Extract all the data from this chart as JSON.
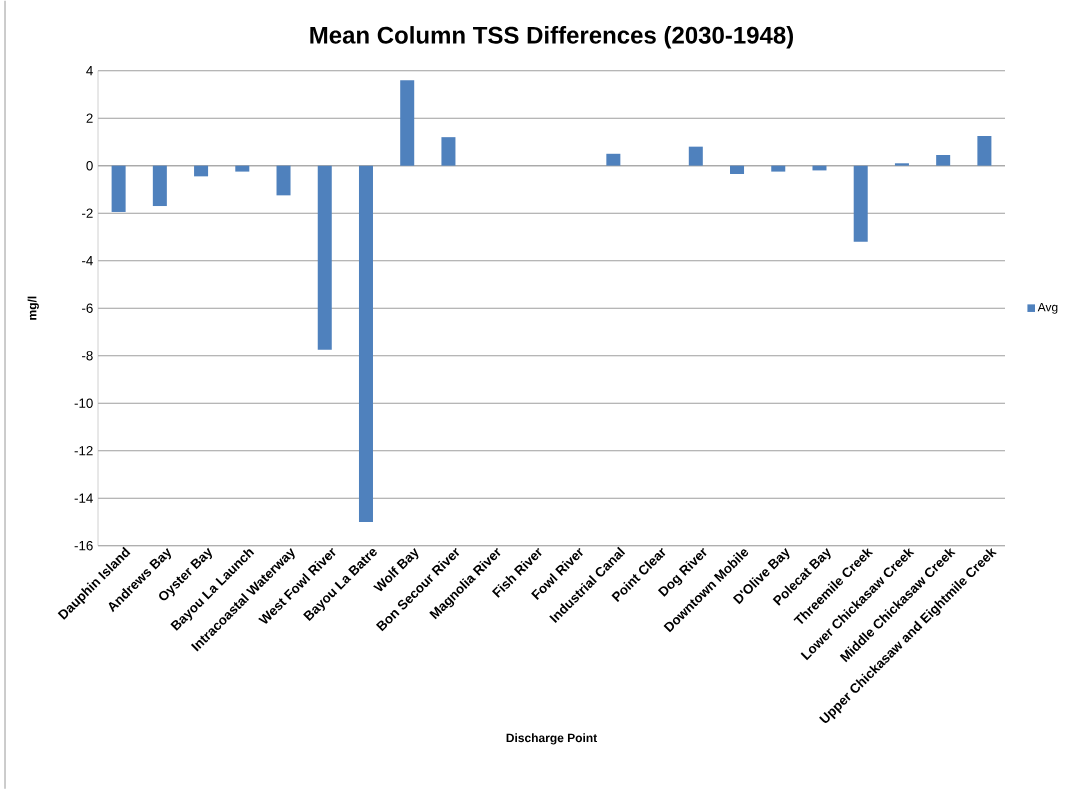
{
  "chart_data": {
    "type": "bar",
    "title": "Mean Column TSS Differences (2030-1948)",
    "xlabel": "Discharge Point",
    "ylabel": "mg/l",
    "categories": [
      "Dauphin Island",
      "Andrews Bay",
      "Oyster Bay",
      "Bayou La Launch",
      "Intracoastal Waterway",
      "West Fowl River",
      "Bayou La Batre",
      "Wolf Bay",
      "Bon Secour River",
      "Magnolia River",
      "Fish River",
      "Fowl River",
      "Industrial Canal",
      "Point Clear",
      "Dog River",
      "Downtown Mobile",
      "D'Olive Bay",
      "Polecat Bay",
      "Threemile Creek",
      "Lower Chickasaw Creek",
      "Middle Chickasaw Creek",
      "Upper Chickasaw and Eightmile Creek"
    ],
    "series": [
      {
        "name": "Avg",
        "color": "#4f81bd",
        "values": [
          -1.95,
          -1.7,
          -0.45,
          -0.25,
          -1.25,
          -7.75,
          -15,
          3.6,
          1.2,
          0,
          0,
          0,
          0.5,
          0,
          0.8,
          -0.35,
          -0.25,
          -0.2,
          -3.2,
          0.1,
          0.45,
          1.25
        ]
      }
    ],
    "ylim": [
      -16,
      4
    ],
    "yticks": [
      -16,
      -14,
      -12,
      -10,
      -8,
      -6,
      -4,
      -2,
      0,
      2,
      4
    ],
    "grid": "y",
    "legend": "right"
  }
}
